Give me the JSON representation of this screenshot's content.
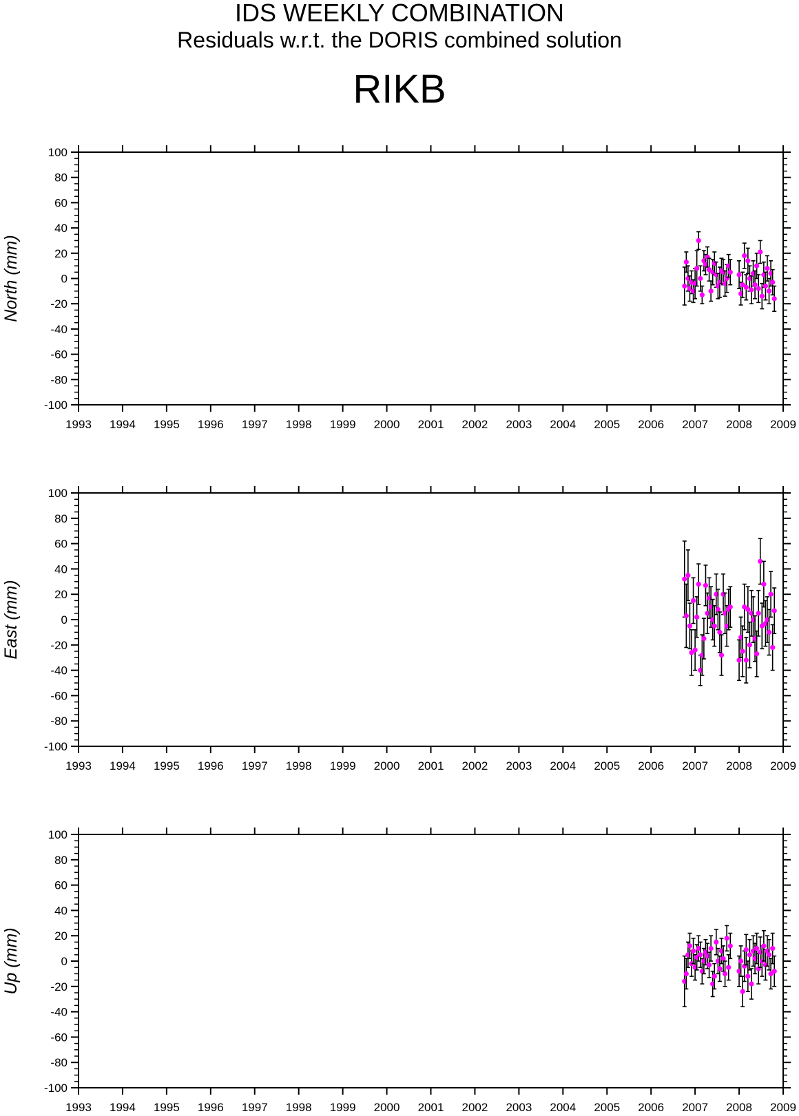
{
  "header": {
    "title": "IDS WEEKLY COMBINATION",
    "subtitle": "Residuals w.r.t. the DORIS combined solution",
    "station": "RIKB"
  },
  "colors": {
    "point": "#ff00ff",
    "errorbar": "#000000",
    "axis": "#000000"
  },
  "chart_data": [
    {
      "type": "scatter",
      "ylabel": "North (mm)",
      "xlim": [
        1993,
        2009
      ],
      "ylim": [
        -100,
        100
      ],
      "yticks": [
        100,
        80,
        60,
        40,
        20,
        0,
        -20,
        -40,
        -60,
        -80,
        -100
      ],
      "xticks": [
        1993,
        1994,
        1995,
        1996,
        1997,
        1998,
        1999,
        2000,
        2001,
        2002,
        2003,
        2004,
        2005,
        2006,
        2007,
        2008,
        2009
      ],
      "grid": false,
      "series": [
        {
          "x": [
            2006.76,
            2006.8,
            2006.84,
            2006.88,
            2006.92,
            2006.96,
            2007.0,
            2007.04,
            2007.08,
            2007.12,
            2007.16,
            2007.2,
            2007.24,
            2007.28,
            2007.32,
            2007.36,
            2007.4,
            2007.44,
            2007.48,
            2007.52,
            2007.56,
            2007.6,
            2007.64,
            2007.68,
            2007.72,
            2007.76,
            2007.8,
            2008.0,
            2008.04,
            2008.08,
            2008.12,
            2008.16,
            2008.2,
            2008.24,
            2008.28,
            2008.32,
            2008.36,
            2008.4,
            2008.44,
            2008.48,
            2008.52,
            2008.56,
            2008.6,
            2008.64,
            2008.68,
            2008.72,
            2008.76,
            2008.8
          ],
          "y": [
            -6,
            13,
            0,
            -8,
            -3,
            -10,
            -4,
            8,
            30,
            0,
            -13,
            14,
            11,
            17,
            7,
            -10,
            5,
            12,
            3,
            -6,
            -3,
            6,
            5,
            -4,
            0,
            10,
            5,
            3,
            -12,
            -5,
            18,
            -7,
            14,
            0,
            -9,
            4,
            -5,
            10,
            -8,
            21,
            -14,
            3,
            -6,
            8,
            -10,
            4,
            -3,
            -16
          ],
          "err": [
            15,
            8,
            10,
            10,
            9,
            9,
            12,
            14,
            7,
            10,
            7,
            8,
            8,
            8,
            9,
            8,
            10,
            9,
            10,
            10,
            12,
            10,
            10,
            10,
            11,
            9,
            10,
            11,
            9,
            10,
            10,
            10,
            10,
            10,
            11,
            10,
            11,
            10,
            11,
            9,
            10,
            10,
            11,
            10,
            10,
            10,
            10,
            10
          ]
        }
      ]
    },
    {
      "type": "scatter",
      "ylabel": "East (mm)",
      "xlim": [
        1993,
        2009
      ],
      "ylim": [
        -100,
        100
      ],
      "yticks": [
        100,
        80,
        60,
        40,
        20,
        0,
        -20,
        -40,
        -60,
        -80,
        -100
      ],
      "xticks": [
        1993,
        1994,
        1995,
        1996,
        1997,
        1998,
        1999,
        2000,
        2001,
        2002,
        2003,
        2004,
        2005,
        2006,
        2007,
        2008,
        2009
      ],
      "grid": false,
      "series": [
        {
          "x": [
            2006.76,
            2006.8,
            2006.84,
            2006.88,
            2006.92,
            2006.96,
            2007.0,
            2007.04,
            2007.08,
            2007.12,
            2007.16,
            2007.2,
            2007.24,
            2007.28,
            2007.32,
            2007.36,
            2007.4,
            2007.44,
            2007.48,
            2007.52,
            2007.56,
            2007.6,
            2007.64,
            2007.68,
            2007.72,
            2007.76,
            2007.8,
            2008.0,
            2008.04,
            2008.08,
            2008.12,
            2008.16,
            2008.2,
            2008.24,
            2008.28,
            2008.32,
            2008.36,
            2008.4,
            2008.44,
            2008.48,
            2008.52,
            2008.56,
            2008.6,
            2008.64,
            2008.68,
            2008.72,
            2008.76,
            2008.8
          ],
          "y": [
            32,
            3,
            35,
            -5,
            -26,
            15,
            -24,
            2,
            28,
            -40,
            -28,
            -15,
            27,
            5,
            17,
            10,
            0,
            -5,
            20,
            8,
            -10,
            -28,
            20,
            5,
            -5,
            8,
            10,
            -32,
            -14,
            -25,
            10,
            -32,
            8,
            -20,
            5,
            0,
            -15,
            -27,
            5,
            46,
            -5,
            28,
            -3,
            0,
            -10,
            20,
            -22,
            7
          ],
          "err": [
            30,
            25,
            20,
            18,
            18,
            18,
            16,
            16,
            16,
            12,
            16,
            16,
            16,
            16,
            16,
            16,
            16,
            16,
            16,
            16,
            16,
            16,
            16,
            16,
            16,
            16,
            16,
            16,
            16,
            20,
            18,
            18,
            18,
            18,
            18,
            18,
            18,
            18,
            18,
            18,
            18,
            18,
            18,
            18,
            18,
            18,
            18,
            18
          ]
        }
      ]
    },
    {
      "type": "scatter",
      "ylabel": "Up (mm)",
      "xlim": [
        1993,
        2009
      ],
      "ylim": [
        -100,
        100
      ],
      "yticks": [
        100,
        80,
        60,
        40,
        20,
        0,
        -20,
        -40,
        -60,
        -80,
        -100
      ],
      "xticks": [
        1993,
        1994,
        1995,
        1996,
        1997,
        1998,
        1999,
        2000,
        2001,
        2002,
        2003,
        2004,
        2005,
        2006,
        2007,
        2008,
        2009
      ],
      "grid": false,
      "series": [
        {
          "x": [
            2006.76,
            2006.8,
            2006.84,
            2006.88,
            2006.92,
            2006.96,
            2007.0,
            2007.04,
            2007.08,
            2007.12,
            2007.16,
            2007.2,
            2007.24,
            2007.28,
            2007.32,
            2007.36,
            2007.4,
            2007.44,
            2007.48,
            2007.52,
            2007.56,
            2007.6,
            2007.64,
            2007.68,
            2007.72,
            2007.76,
            2007.8,
            2008.0,
            2008.04,
            2008.08,
            2008.12,
            2008.16,
            2008.2,
            2008.24,
            2008.28,
            2008.32,
            2008.36,
            2008.4,
            2008.44,
            2008.48,
            2008.52,
            2008.56,
            2008.6,
            2008.64,
            2008.68,
            2008.72,
            2008.76,
            2008.8
          ],
          "y": [
            -16,
            -10,
            5,
            12,
            -2,
            8,
            -5,
            3,
            10,
            5,
            -8,
            0,
            7,
            4,
            -3,
            10,
            -18,
            -12,
            15,
            0,
            -6,
            8,
            2,
            -10,
            18,
            -5,
            12,
            -8,
            0,
            -24,
            -4,
            9,
            -12,
            5,
            -18,
            8,
            2,
            10,
            -6,
            7,
            0,
            12,
            -3,
            8,
            5,
            -10,
            10,
            -8
          ],
          "err": [
            20,
            12,
            10,
            10,
            10,
            10,
            10,
            10,
            10,
            10,
            10,
            10,
            10,
            10,
            10,
            10,
            10,
            10,
            10,
            10,
            10,
            10,
            10,
            10,
            10,
            10,
            10,
            12,
            12,
            12,
            12,
            12,
            12,
            12,
            12,
            12,
            12,
            12,
            12,
            12,
            12,
            12,
            12,
            12,
            12,
            12,
            12,
            12
          ]
        }
      ]
    }
  ]
}
